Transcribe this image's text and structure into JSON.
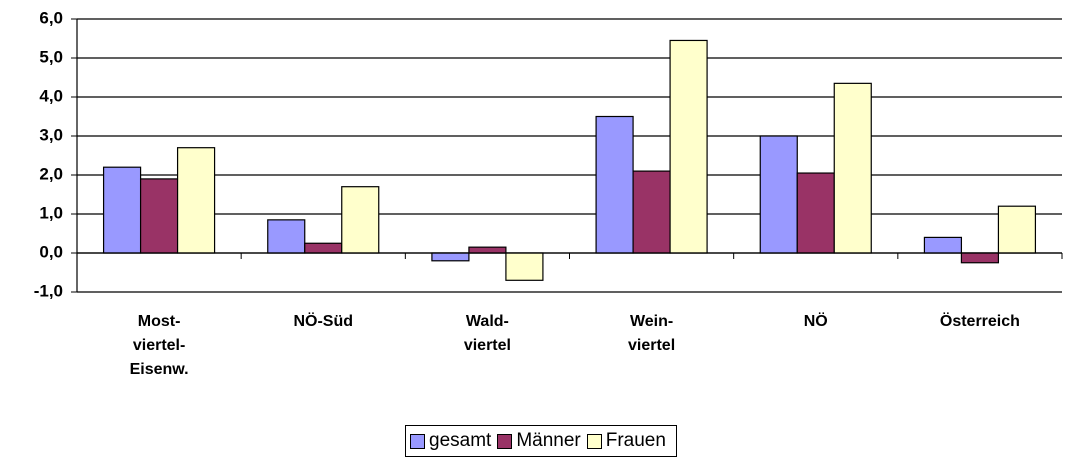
{
  "chart_data": {
    "type": "bar",
    "categories": [
      "Most-\nviertel-\nEisenw.",
      "NÖ-Süd",
      "Wald-\nviertel",
      "Wein-\nviertel",
      "NÖ",
      "Österreich"
    ],
    "series": [
      {
        "name": "gesamt",
        "color": "#9999ff",
        "values": [
          2.2,
          0.85,
          -0.2,
          3.5,
          3.0,
          0.4
        ]
      },
      {
        "name": "Männer",
        "color": "#993366",
        "values": [
          1.9,
          0.25,
          0.15,
          2.1,
          2.05,
          -0.25
        ]
      },
      {
        "name": "Frauen",
        "color": "#ffffcc",
        "values": [
          2.7,
          1.7,
          -0.7,
          5.45,
          4.35,
          1.2
        ]
      }
    ],
    "ylim": [
      -1,
      6
    ],
    "yticks": [
      {
        "value": -1,
        "label": "-1,0"
      },
      {
        "value": 0,
        "label": "0,0"
      },
      {
        "value": 1,
        "label": "1,0"
      },
      {
        "value": 2,
        "label": "2,0"
      },
      {
        "value": 3,
        "label": "3,0"
      },
      {
        "value": 4,
        "label": "4,0"
      },
      {
        "value": 5,
        "label": "5,0"
      },
      {
        "value": 6,
        "label": "6,0"
      }
    ],
    "grid": true,
    "legend": "bottom"
  }
}
